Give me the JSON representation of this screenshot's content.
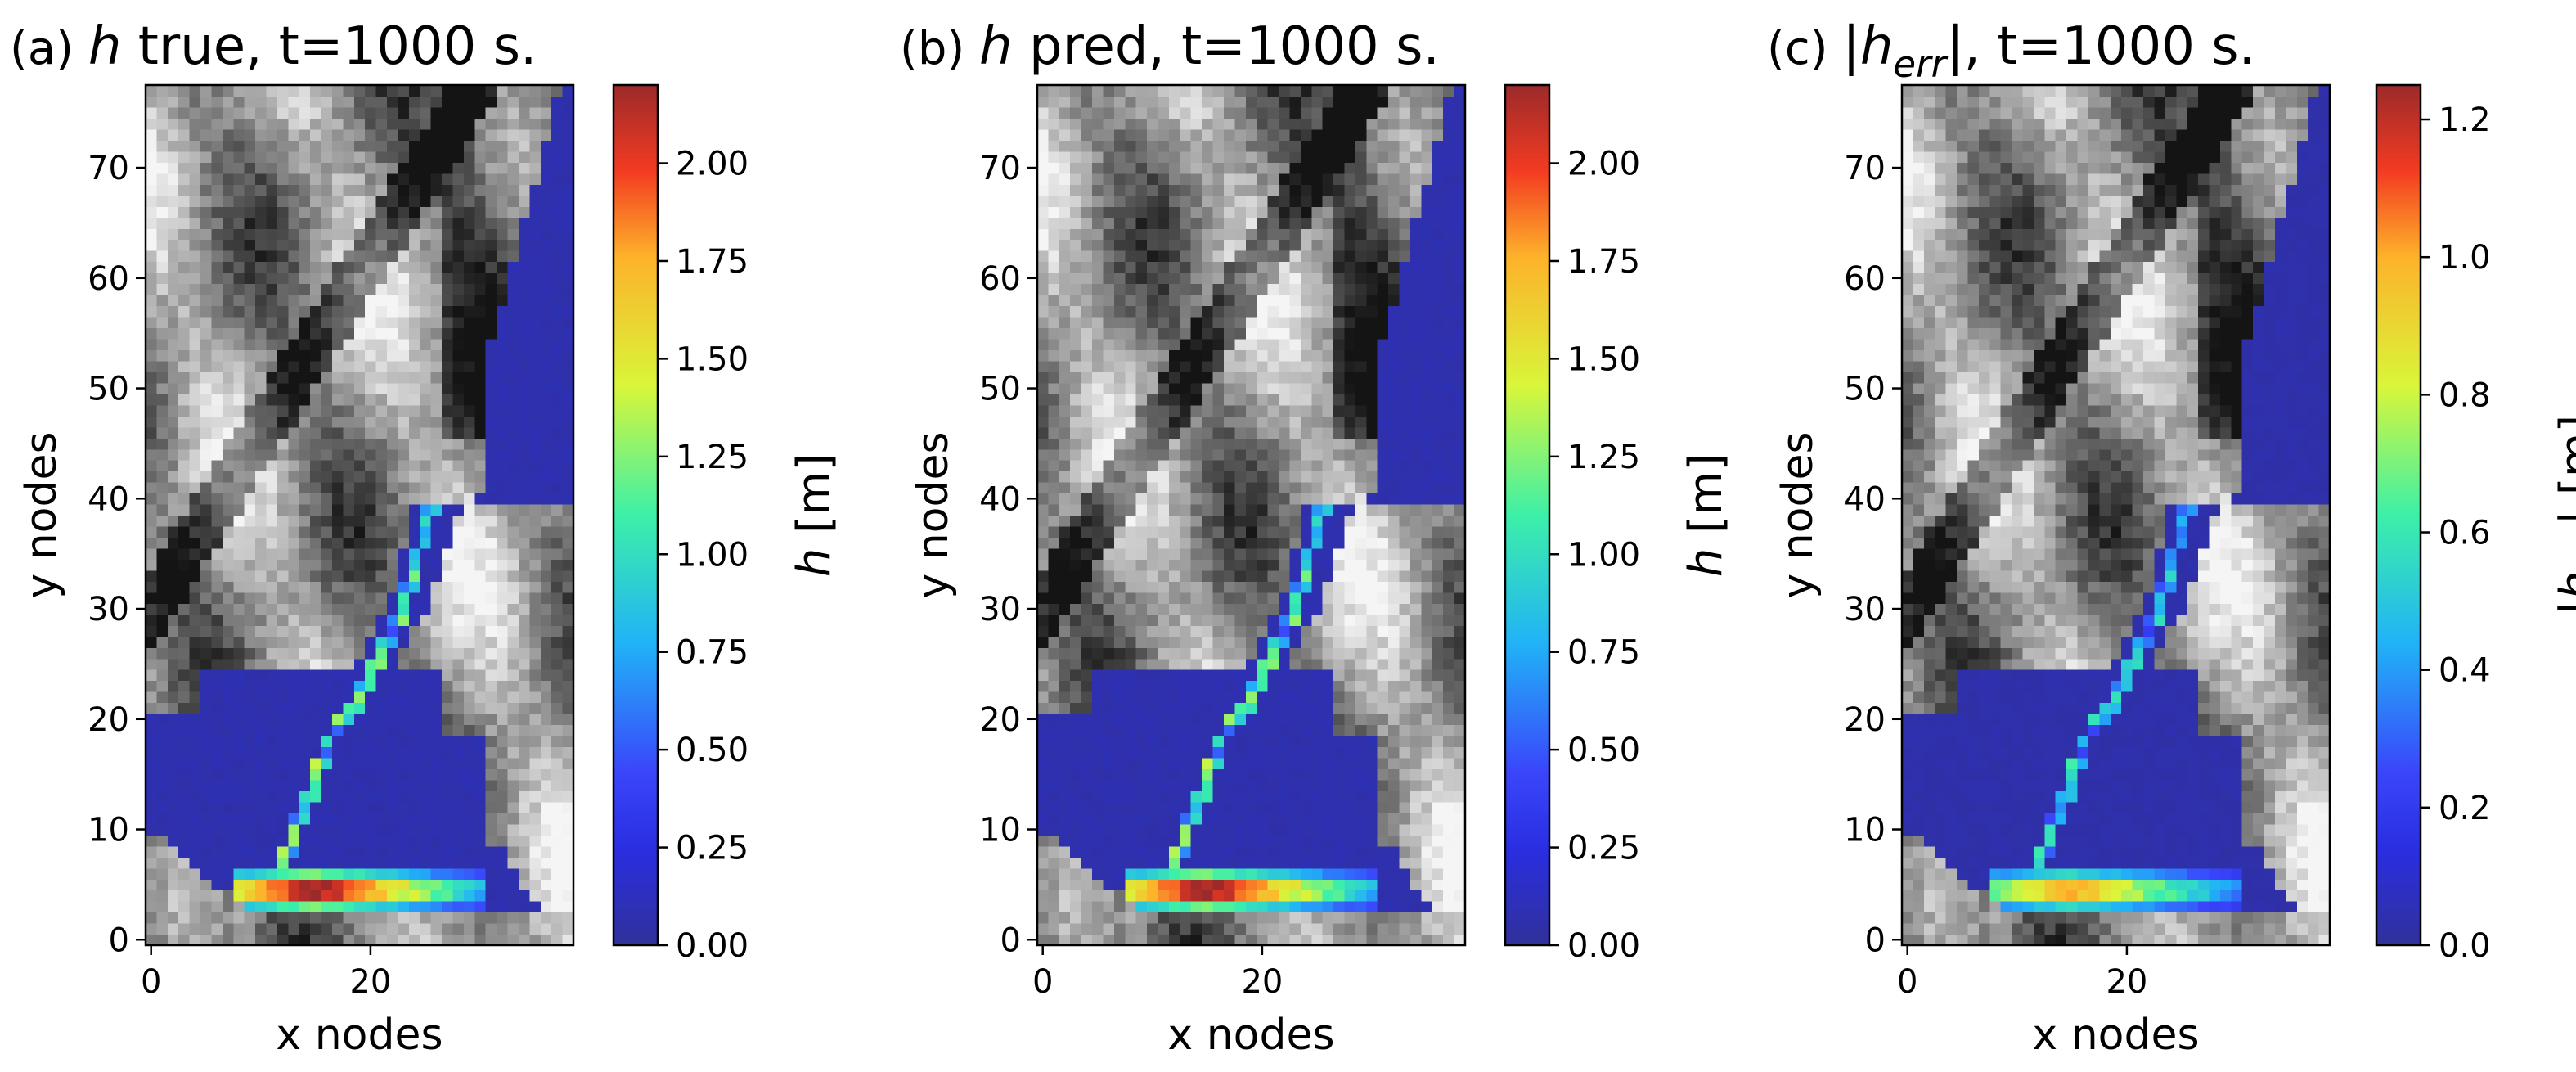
{
  "chart_data": [
    {
      "type": "heatmap",
      "panel_label": "(a)",
      "title_var": "h",
      "title_rest": " true, t=1000 s.",
      "xlabel": "x nodes",
      "ylabel": "y nodes",
      "xticks": [
        0,
        20
      ],
      "yticks": [
        0,
        10,
        20,
        30,
        40,
        50,
        60,
        70
      ],
      "xlim": [
        -0.5,
        38.5
      ],
      "ylim": [
        -0.5,
        77.5
      ],
      "background": "grayscale terrain (DEM)",
      "colormap": "jet",
      "colorbar": {
        "label_var": "h",
        "label_unit": " [m]",
        "min": 0,
        "max": 2.2,
        "ticks": [
          "0.00",
          "0.25",
          "0.50",
          "0.75",
          "1.00",
          "1.25",
          "1.50",
          "1.75",
          "2.00"
        ],
        "tick_values": [
          0,
          0.25,
          0.5,
          0.75,
          1.0,
          1.25,
          1.5,
          1.75,
          2.0
        ]
      }
    },
    {
      "type": "heatmap",
      "panel_label": "(b)",
      "title_var": "h",
      "title_rest": " pred, t=1000 s.",
      "xlabel": "x nodes",
      "ylabel": "y nodes",
      "xticks": [
        0,
        20
      ],
      "yticks": [
        0,
        10,
        20,
        30,
        40,
        50,
        60,
        70
      ],
      "xlim": [
        -0.5,
        38.5
      ],
      "ylim": [
        -0.5,
        77.5
      ],
      "background": "grayscale terrain (DEM)",
      "colormap": "jet",
      "colorbar": {
        "label_var": "h",
        "label_unit": " [m]",
        "min": 0,
        "max": 2.2,
        "ticks": [
          "0.00",
          "0.25",
          "0.50",
          "0.75",
          "1.00",
          "1.25",
          "1.50",
          "1.75",
          "2.00"
        ],
        "tick_values": [
          0,
          0.25,
          0.5,
          0.75,
          1.0,
          1.25,
          1.5,
          1.75,
          2.0
        ]
      }
    },
    {
      "type": "heatmap",
      "panel_label": "(c)",
      "title_var": "|h_err|",
      "title_rest": ", t=1000 s.",
      "xlabel": "x nodes",
      "ylabel": "y nodes",
      "xticks": [
        0,
        20
      ],
      "yticks": [
        0,
        10,
        20,
        30,
        40,
        50,
        60,
        70
      ],
      "xlim": [
        -0.5,
        38.5
      ],
      "ylim": [
        -0.5,
        77.5
      ],
      "background": "grayscale terrain (DEM)",
      "colormap": "jet",
      "colorbar": {
        "label_var": "|h_err|",
        "label_unit": " [m]",
        "min": 0,
        "max": 1.25,
        "ticks": [
          "0.0",
          "0.2",
          "0.4",
          "0.6",
          "0.8",
          "1.0",
          "1.2"
        ],
        "tick_values": [
          0,
          0.2,
          0.4,
          0.6,
          0.8,
          1.0,
          1.2
        ]
      }
    }
  ]
}
